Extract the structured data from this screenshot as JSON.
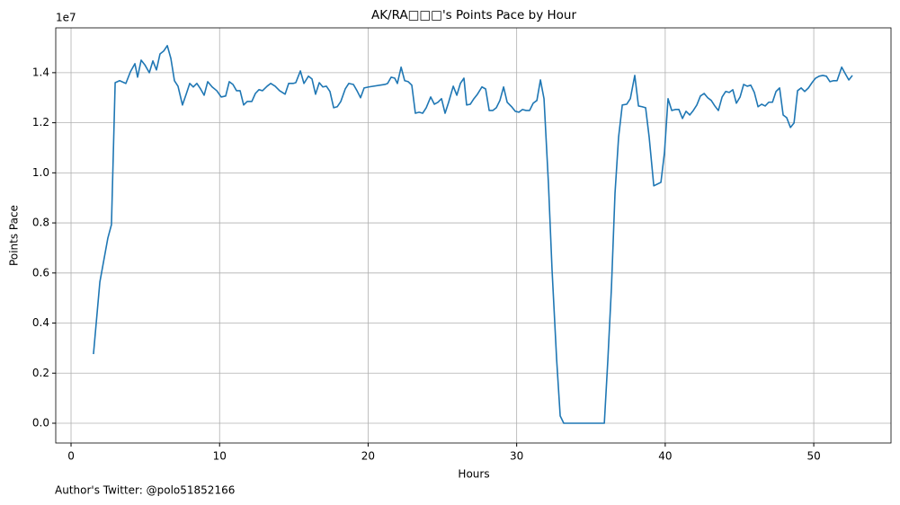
{
  "chart_data": {
    "type": "line",
    "title": "AK/RA□□□'s Points Pace by Hour",
    "x_label": "Hours",
    "y_label": "Points Pace",
    "y_offset_text": "1e7",
    "footer": "Author's Twitter: @polo51852166",
    "color": "#1f77b4",
    "grid": true,
    "xlim": [
      -1.03,
      55.2
    ],
    "ylim": [
      -790000,
      15790000
    ],
    "xticks": [
      0,
      10,
      20,
      30,
      40,
      50
    ],
    "yticks": [
      {
        "value": 0,
        "label": "0.0"
      },
      {
        "value": 2000000,
        "label": "0.2"
      },
      {
        "value": 4000000,
        "label": "0.4"
      },
      {
        "value": 6000000,
        "label": "0.6"
      },
      {
        "value": 8000000,
        "label": "0.8"
      },
      {
        "value": 10000000,
        "label": "1.0"
      },
      {
        "value": 12000000,
        "label": "1.2"
      },
      {
        "value": 14000000,
        "label": "1.4"
      }
    ],
    "x": [
      1.51,
      1.94,
      2.48,
      2.72,
      2.97,
      3.27,
      3.69,
      4.0,
      4.3,
      4.48,
      4.72,
      4.96,
      5.27,
      5.51,
      5.75,
      5.99,
      6.23,
      6.48,
      6.72,
      6.96,
      7.2,
      7.5,
      7.75,
      7.99,
      8.23,
      8.47,
      8.72,
      8.96,
      9.2,
      9.5,
      9.81,
      10.11,
      10.41,
      10.65,
      10.9,
      11.14,
      11.38,
      11.62,
      11.86,
      12.17,
      12.41,
      12.65,
      12.89,
      13.2,
      13.44,
      13.74,
      14.04,
      14.41,
      14.65,
      14.95,
      15.13,
      15.44,
      15.68,
      15.98,
      16.22,
      16.46,
      16.71,
      16.95,
      17.19,
      17.43,
      17.68,
      17.92,
      18.16,
      18.46,
      18.7,
      19.01,
      19.25,
      19.49,
      19.73,
      20.04,
      21.13,
      21.31,
      21.55,
      21.79,
      21.97,
      22.22,
      22.46,
      22.7,
      22.94,
      23.18,
      23.43,
      23.67,
      23.91,
      24.21,
      24.46,
      24.7,
      24.94,
      25.18,
      25.42,
      25.73,
      25.97,
      26.21,
      26.45,
      26.63,
      26.88,
      27.12,
      27.36,
      27.66,
      27.91,
      28.15,
      28.39,
      28.63,
      28.87,
      29.12,
      29.36,
      29.66,
      29.9,
      30.15,
      30.39,
      30.63,
      30.87,
      31.11,
      31.36,
      31.6,
      31.84,
      32.14,
      32.38,
      32.69,
      32.93,
      33.17,
      35.9,
      36.14,
      36.38,
      36.62,
      36.86,
      37.11,
      37.41,
      37.65,
      37.95,
      38.2,
      38.44,
      38.68,
      38.92,
      39.23,
      39.47,
      39.71,
      39.95,
      40.19,
      40.44,
      40.68,
      40.92,
      41.16,
      41.4,
      41.65,
      41.89,
      42.13,
      42.37,
      42.62,
      42.86,
      43.1,
      43.34,
      43.58,
      43.83,
      44.07,
      44.31,
      44.55,
      44.79,
      45.04,
      45.28,
      45.52,
      45.76,
      46.0,
      46.25,
      46.49,
      46.73,
      46.97,
      47.22,
      47.46,
      47.7,
      47.94,
      48.18,
      48.43,
      48.67,
      48.91,
      49.15,
      49.39,
      49.64,
      49.88,
      50.12,
      50.36,
      50.61,
      50.85,
      51.09,
      51.33,
      51.57,
      51.88,
      52.12,
      52.36,
      52.6
    ],
    "values": [
      2760000,
      5640000,
      7400000,
      7930000,
      13600000,
      13680000,
      13570000,
      14040000,
      14360000,
      13820000,
      14500000,
      14320000,
      14000000,
      14470000,
      14110000,
      14750000,
      14860000,
      15080000,
      14570000,
      13680000,
      13460000,
      12710000,
      13140000,
      13570000,
      13430000,
      13570000,
      13350000,
      13100000,
      13640000,
      13430000,
      13280000,
      13030000,
      13070000,
      13640000,
      13530000,
      13280000,
      13280000,
      12710000,
      12850000,
      12850000,
      13170000,
      13320000,
      13280000,
      13460000,
      13570000,
      13460000,
      13280000,
      13140000,
      13570000,
      13570000,
      13600000,
      14070000,
      13570000,
      13860000,
      13750000,
      13140000,
      13600000,
      13430000,
      13460000,
      13250000,
      12600000,
      12640000,
      12850000,
      13350000,
      13570000,
      13530000,
      13280000,
      13000000,
      13390000,
      13430000,
      13530000,
      13570000,
      13820000,
      13780000,
      13570000,
      14220000,
      13680000,
      13640000,
      13500000,
      12380000,
      12420000,
      12380000,
      12600000,
      13030000,
      12740000,
      12820000,
      12960000,
      12380000,
      12820000,
      13460000,
      13100000,
      13570000,
      13780000,
      12710000,
      12740000,
      12960000,
      13140000,
      13430000,
      13350000,
      12490000,
      12490000,
      12600000,
      12890000,
      13430000,
      12820000,
      12640000,
      12460000,
      12420000,
      12530000,
      12490000,
      12490000,
      12780000,
      12890000,
      13710000,
      12960000,
      9550000,
      6140000,
      2550000,
      290000,
      0,
      0,
      2550000,
      5420000,
      9190000,
      11420000,
      12710000,
      12740000,
      12960000,
      13890000,
      12670000,
      12640000,
      12600000,
      11420000,
      9480000,
      9550000,
      9620000,
      10810000,
      12960000,
      12490000,
      12530000,
      12530000,
      12170000,
      12460000,
      12310000,
      12490000,
      12710000,
      13070000,
      13170000,
      13000000,
      12890000,
      12670000,
      12490000,
      13030000,
      13250000,
      13210000,
      13320000,
      12780000,
      13030000,
      13530000,
      13460000,
      13500000,
      13210000,
      12640000,
      12740000,
      12670000,
      12820000,
      12820000,
      13250000,
      13390000,
      12310000,
      12200000,
      11810000,
      11990000,
      13280000,
      13390000,
      13250000,
      13390000,
      13600000,
      13780000,
      13860000,
      13890000,
      13860000,
      13640000,
      13680000,
      13680000,
      14220000,
      13960000,
      13710000,
      13890000
    ]
  }
}
